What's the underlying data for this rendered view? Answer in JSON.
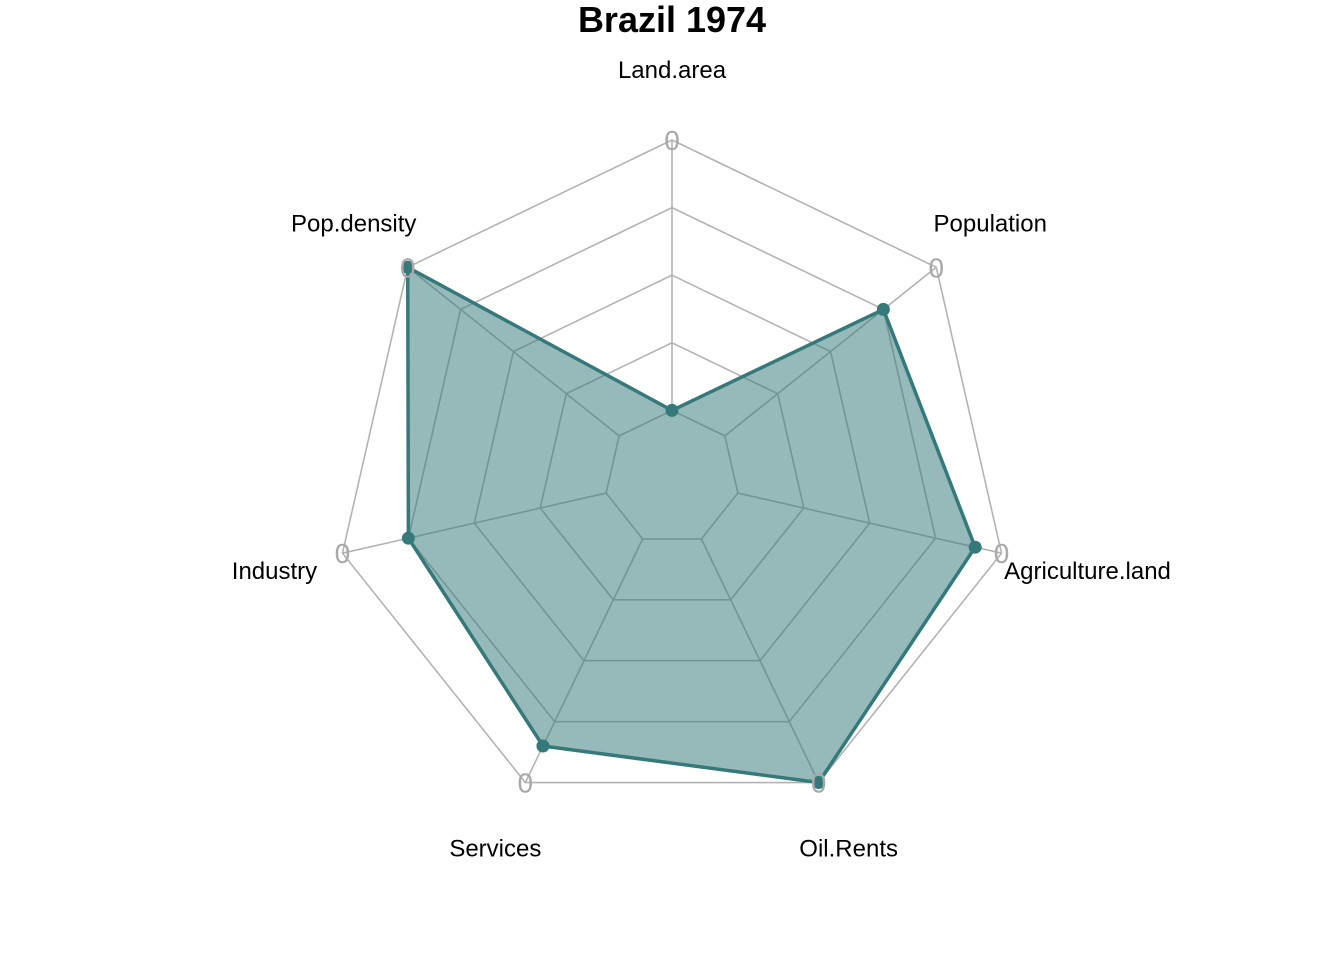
{
  "chart_data": {
    "type": "radar",
    "title": "Brazil 1974",
    "axes": [
      "Land.area",
      "Population",
      "Agriculture.land",
      "Oil.Rents",
      "Services",
      "Industry",
      "Pop.density"
    ],
    "series": [
      {
        "values": [
          0.0,
          0.75,
          0.9,
          1.0,
          0.85,
          0.75,
          1.0
        ]
      }
    ],
    "range": [
      0,
      1
    ],
    "grid_levels": 4,
    "tick_labels": [
      "0",
      "0",
      "0",
      "0",
      "0",
      "0",
      "0"
    ],
    "colors": {
      "line": "#35797a",
      "fill": "#35797a",
      "grid": "#b3b3b3",
      "tick": "#a9a9a9"
    }
  }
}
